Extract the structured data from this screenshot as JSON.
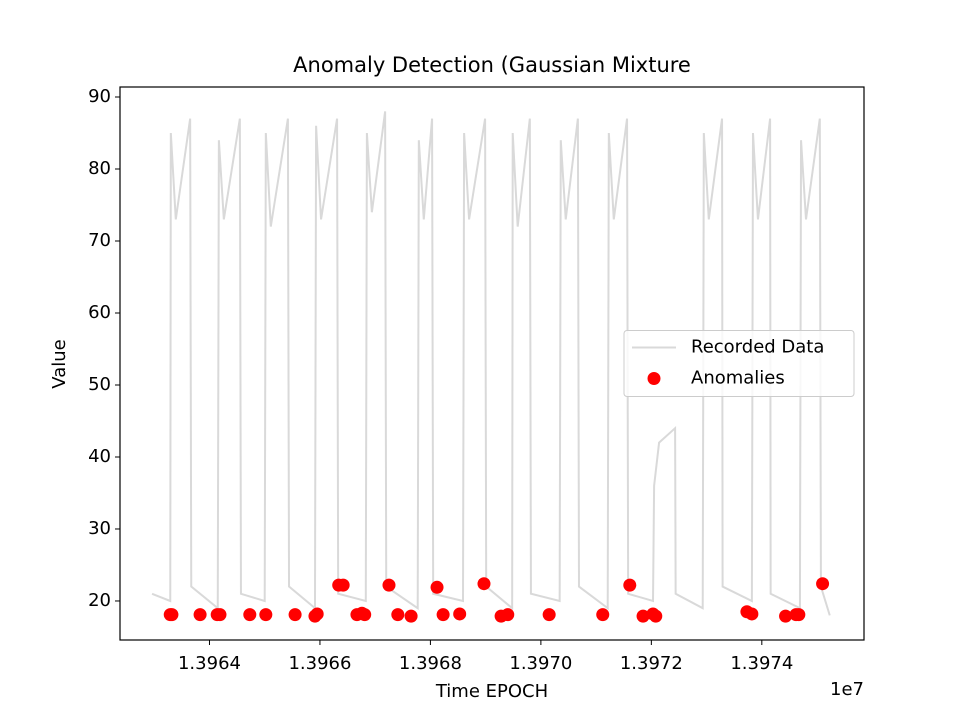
{
  "chart_data": {
    "type": "line_scatter",
    "title": "Anomaly Detection (Gaussian Mixture",
    "xlabel": "Time EPOCH",
    "ylabel": "Value",
    "x_offset_label": "1e7",
    "xlim": [
      1.396238,
      1.397585
    ],
    "ylim": [
      14.58,
      91.39
    ],
    "xticks": [
      1.3964,
      1.3966,
      1.3968,
      {
        "value": 1.397,
        "label": "1.3970"
      },
      1.3972,
      1.3974
    ],
    "yticks": [
      20,
      30,
      40,
      50,
      60,
      70,
      80,
      90
    ],
    "legend": "center right",
    "series": [
      {
        "name": "Recorded Data",
        "kind": "line",
        "color": "#d9d9d9",
        "x": [
          1.396296,
          1.396329,
          1.39633,
          1.396339,
          1.396365,
          1.396367,
          1.396415,
          1.396417,
          1.396426,
          1.396455,
          1.396457,
          1.3965,
          1.396502,
          1.396511,
          1.396542,
          1.396544,
          1.396591,
          1.396593,
          1.396602,
          1.396631,
          1.396633,
          1.396683,
          1.396685,
          1.396694,
          1.396718,
          1.39672,
          1.396777,
          1.396779,
          1.396788,
          1.396803,
          1.396805,
          1.396859,
          1.396861,
          1.39687,
          1.396899,
          1.396901,
          1.396948,
          1.396949,
          1.396958,
          1.39698,
          1.396982,
          1.397034,
          1.397036,
          1.397045,
          1.397067,
          1.397069,
          1.397121,
          1.397123,
          1.397132,
          1.397156,
          1.397158,
          1.397203,
          1.397205,
          1.397214,
          1.397243,
          1.397244,
          1.397293,
          1.397295,
          1.397304,
          1.397328,
          1.397329,
          1.397382,
          1.397384,
          1.397393,
          1.397415,
          1.397416,
          1.397469,
          1.397471,
          1.39748,
          1.397505,
          1.397507,
          1.397523
        ],
        "values": [
          21,
          20,
          85,
          73,
          87,
          22,
          19,
          84,
          73,
          87,
          21,
          20,
          85,
          72,
          87,
          22,
          19,
          86,
          73,
          87,
          21,
          20,
          85,
          74,
          88,
          22,
          19,
          84,
          73,
          87,
          21,
          20,
          85,
          73,
          87,
          22,
          19,
          85,
          72,
          87,
          21,
          20,
          84,
          73,
          87,
          22,
          19,
          85,
          73,
          87,
          21,
          20,
          36,
          42,
          44,
          21,
          19,
          85,
          73,
          87,
          22,
          20,
          85,
          73,
          87,
          21,
          19,
          84,
          73,
          87,
          22,
          18
        ]
      },
      {
        "name": "Anomalies",
        "kind": "scatter",
        "color": "#ff0000",
        "x": [
          1.396329,
          1.396332,
          1.396383,
          1.396414,
          1.396419,
          1.396473,
          1.396502,
          1.396555,
          1.396591,
          1.396595,
          1.396634,
          1.396642,
          1.396667,
          1.396676,
          1.396681,
          1.396725,
          1.396741,
          1.396765,
          1.396812,
          1.396823,
          1.396853,
          1.396897,
          1.396928,
          1.39694,
          1.397015,
          1.397112,
          1.397161,
          1.397185,
          1.397203,
          1.397208,
          1.397373,
          1.397382,
          1.397443,
          1.397462,
          1.397467,
          1.39751
        ],
        "values": [
          18.1,
          18.1,
          18.1,
          18.1,
          18.1,
          18.1,
          18.1,
          18.1,
          17.9,
          18.2,
          22.2,
          22.2,
          18.1,
          18.3,
          18.1,
          22.2,
          18.1,
          17.9,
          21.9,
          18.1,
          18.2,
          22.4,
          17.9,
          18.1,
          18.1,
          18.1,
          22.2,
          17.9,
          18.2,
          17.9,
          18.5,
          18.2,
          17.9,
          18.1,
          18.1,
          22.4
        ]
      }
    ]
  }
}
